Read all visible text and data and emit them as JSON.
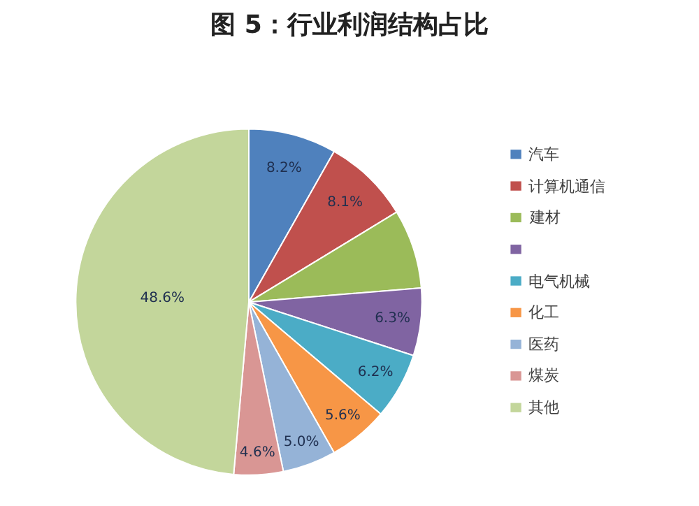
{
  "chart_data": {
    "type": "pie",
    "title": "图 5：行业利润结构占比",
    "categories": [
      "汽车",
      "计算机通信",
      "建材",
      null,
      "电气机械",
      "化工",
      "医药",
      "煤炭",
      "其他"
    ],
    "values": [
      8.2,
      8.1,
      7.4,
      6.3,
      6.2,
      5.6,
      5.0,
      4.6,
      48.6
    ],
    "value_labels": [
      "8.2%",
      "8.1%",
      null,
      "6.3%",
      "6.2%",
      "5.6%",
      "5.0%",
      "4.6%",
      "48.6%"
    ],
    "colors": [
      "#4f81bd",
      "#c0504d",
      "#9bbb59",
      "#8064a2",
      "#4bacc6",
      "#f79646",
      "#95b3d7",
      "#d99694",
      "#c3d69b"
    ],
    "legend": "right"
  }
}
